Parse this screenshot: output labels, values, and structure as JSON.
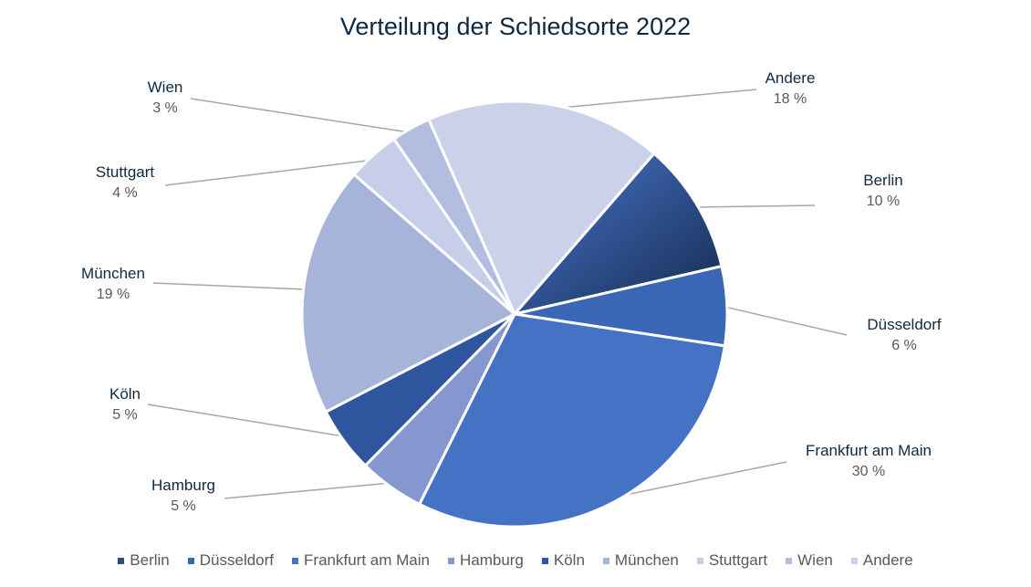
{
  "chart_data": {
    "type": "pie",
    "title": "Verteilung der Schiedsorte 2022",
    "slices": [
      {
        "label": "Berlin",
        "value": 10,
        "value_label": "10 %",
        "color": "#2e4d84",
        "gradient": [
          "#4a78d0",
          "#152a4e"
        ]
      },
      {
        "label": "Düsseldorf",
        "value": 6,
        "value_label": "6 %",
        "color": "#3a67b6"
      },
      {
        "label": "Frankfurt am Main",
        "value": 30,
        "value_label": "30 %",
        "color": "#4472c4"
      },
      {
        "label": "Hamburg",
        "value": 5,
        "value_label": "5 %",
        "color": "#8497cf"
      },
      {
        "label": "Köln",
        "value": 5,
        "value_label": "5 %",
        "color": "#2f559f"
      },
      {
        "label": "München",
        "value": 19,
        "value_label": "19 %",
        "color": "#a7b4d9"
      },
      {
        "label": "Stuttgart",
        "value": 4,
        "value_label": "4 %",
        "color": "#c6cee9"
      },
      {
        "label": "Wien",
        "value": 3,
        "value_label": "3 %",
        "color": "#b3bde0"
      },
      {
        "label": "Andere",
        "value": 18,
        "value_label": "18 %",
        "color": "#cbd1e9"
      }
    ],
    "legend_position": "bottom",
    "label_style": "outside with leader lines"
  }
}
